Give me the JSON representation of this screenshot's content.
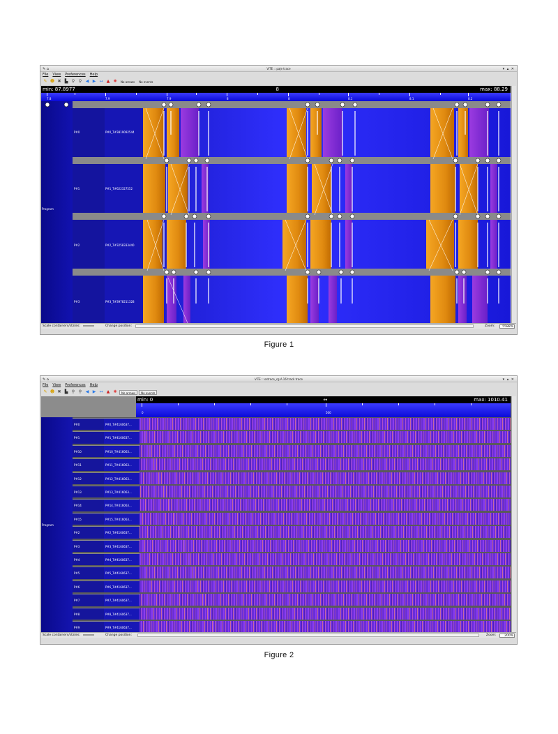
{
  "figure1": {
    "window_title": "ViTE :: paje trace",
    "menu": [
      "File",
      "View",
      "Preferences",
      "Help"
    ],
    "toolbar_toggles": [
      "No arrows",
      "No events"
    ],
    "ruler": {
      "min": "min: 87.8977",
      "mid": "8",
      "max": "max: 88.29"
    },
    "ticks": [
      "7.8",
      "7.9",
      "7.9",
      "8",
      "8",
      "8.1",
      "8.1",
      "8.2"
    ],
    "program_label": "Program",
    "processes": [
      "P#0",
      "P#1",
      "P#2",
      "P#3"
    ],
    "threads": [
      "P#0_T#3819092544",
      "P#1_T#622327552",
      "P#2_T#3258333440",
      "P#3_T#3978211328"
    ],
    "bottom": {
      "scale_label": "Scale containers/states:",
      "change_position": "Change position:",
      "zoom_label": "Zoom:",
      "zoom_value": "5588%"
    },
    "caption": "Figure 1"
  },
  "figure2": {
    "window_title": "ViTE :: ostrace_cg.A.16 track trace",
    "menu": [
      "File",
      "View",
      "Preferences",
      "Help"
    ],
    "toolbar_toggles": [
      "No arrows",
      "No events"
    ],
    "ruler": {
      "min": "min: 0",
      "mid": "↔",
      "max": "max: 1010.41"
    },
    "ticks": [
      "0",
      "500"
    ],
    "program_label": "Program",
    "processes": [
      "P#0",
      "P#1",
      "P#10",
      "P#11",
      "P#12",
      "P#13",
      "P#14",
      "P#15",
      "P#2",
      "P#3",
      "P#4",
      "P#5",
      "P#6",
      "P#7",
      "P#8",
      "P#9"
    ],
    "threads": [
      "P#0_T#4160637...",
      "P#1_T#4160637...",
      "P#10_T#416063...",
      "P#11_T#416063...",
      "P#12_T#416063...",
      "P#13_T#416063...",
      "P#14_T#416063...",
      "P#15_T#416063...",
      "P#2_T#4160637...",
      "P#3_T#4160637...",
      "P#4_T#4160637...",
      "P#5_T#4160637...",
      "P#6_T#4160637...",
      "P#7_T#4160637...",
      "P#8_T#4160637...",
      "P#9_T#4160637..."
    ],
    "bottom": {
      "scale_label": "Scale containers/states:",
      "change_position": "Change position:",
      "zoom_label": "Zoom:",
      "zoom_value": "200%"
    },
    "caption": "Figure 2"
  },
  "colors": {
    "state_orange": "#f5a623",
    "state_purple": "#8a3cf0",
    "state_blue": "#1a1ad8",
    "row_separator": "#8a8a8a",
    "ruler_blue": "#1e1ee8"
  }
}
